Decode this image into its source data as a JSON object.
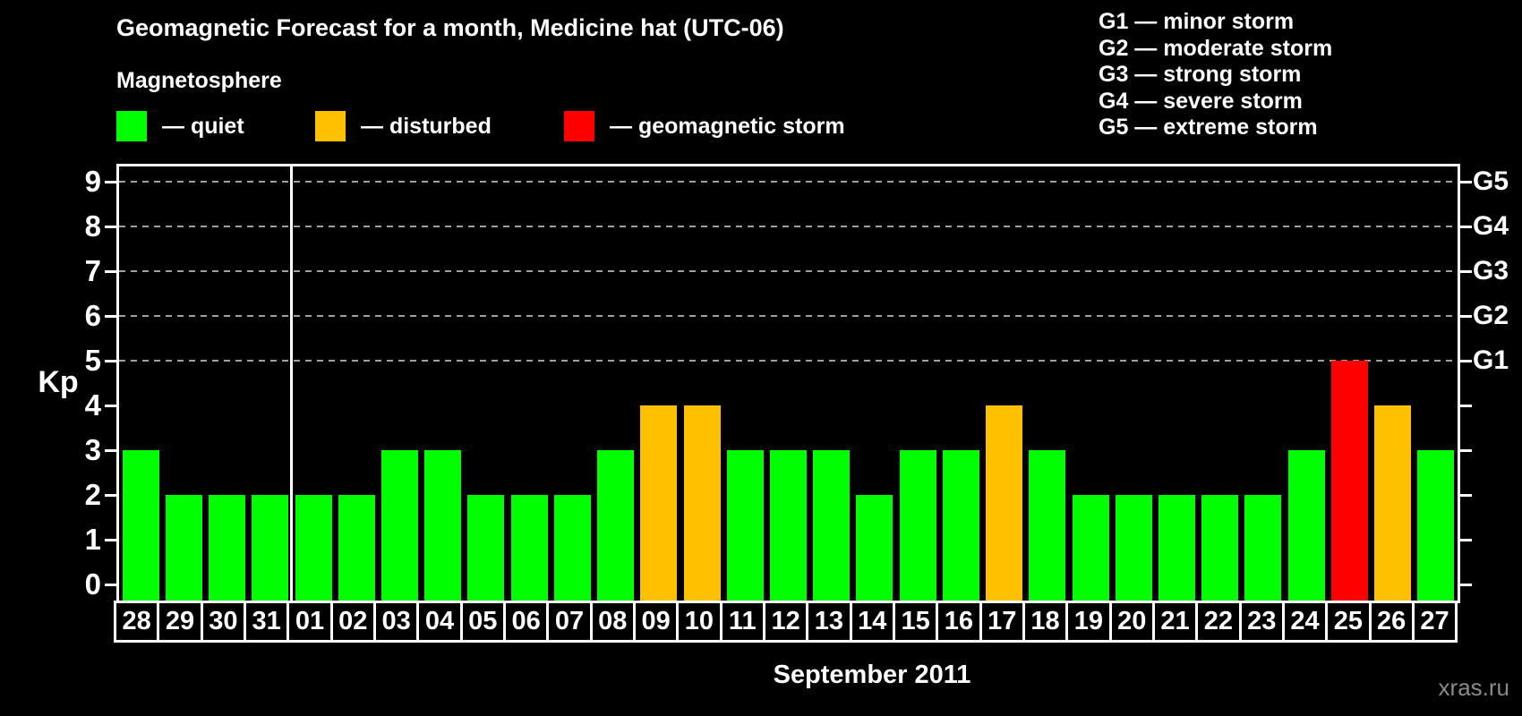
{
  "header": {
    "title": "Geomagnetic Forecast for a month, Medicine hat (UTC-06)",
    "subtitle": "Magnetosphere"
  },
  "legend": {
    "items": [
      {
        "name": "quiet",
        "label": "— quiet",
        "color": "#00ff00"
      },
      {
        "name": "disturbed",
        "label": "— disturbed",
        "color": "#ffc000"
      },
      {
        "name": "storm",
        "label": "— geomagnetic storm",
        "color": "#ff0000"
      }
    ]
  },
  "storm_scale_legend": [
    "G1 — minor storm",
    "G2 — moderate storm",
    "G3 — strong storm",
    "G4 — severe storm",
    "G5 — extreme storm"
  ],
  "axes": {
    "y_label": "Kp",
    "y_ticks": [
      "0",
      "1",
      "2",
      "3",
      "4",
      "5",
      "6",
      "7",
      "8",
      "9"
    ],
    "right_scale": [
      {
        "kp": 5,
        "label": "G1"
      },
      {
        "kp": 6,
        "label": "G2"
      },
      {
        "kp": 7,
        "label": "G3"
      },
      {
        "kp": 8,
        "label": "G4"
      },
      {
        "kp": 9,
        "label": "G5"
      }
    ],
    "x_label": "September 2011"
  },
  "watermark": "xras.ru",
  "colors": {
    "background": "#000000",
    "axis": "#ffffff",
    "gridline": "#a0a0a0",
    "quiet": "#00ff00",
    "disturbed": "#ffc000",
    "storm": "#ff0000",
    "watermark": "#8a8a8a"
  },
  "chart_data": {
    "type": "bar",
    "title": "Geomagnetic Forecast for a month, Medicine hat (UTC-06)",
    "xlabel": "September 2011",
    "ylabel": "Kp",
    "ylim": [
      0,
      9
    ],
    "grid": "horizontal dashed lines at Kp 5-9 (G1-G5 levels)",
    "legend_position": "top-left (magnetosphere) and top-right (G storm scale)",
    "categories": [
      "28",
      "29",
      "30",
      "31",
      "01",
      "02",
      "03",
      "04",
      "05",
      "06",
      "07",
      "08",
      "09",
      "10",
      "11",
      "12",
      "13",
      "14",
      "15",
      "16",
      "17",
      "18",
      "19",
      "20",
      "21",
      "22",
      "23",
      "24",
      "25",
      "26",
      "27"
    ],
    "values": [
      3,
      2,
      2,
      2,
      2,
      2,
      3,
      3,
      2,
      2,
      2,
      3,
      4,
      4,
      3,
      3,
      3,
      2,
      3,
      3,
      4,
      3,
      2,
      2,
      2,
      2,
      2,
      3,
      5,
      4,
      3
    ],
    "statuses": [
      "quiet",
      "quiet",
      "quiet",
      "quiet",
      "quiet",
      "quiet",
      "quiet",
      "quiet",
      "quiet",
      "quiet",
      "quiet",
      "quiet",
      "disturbed",
      "disturbed",
      "quiet",
      "quiet",
      "quiet",
      "quiet",
      "quiet",
      "quiet",
      "disturbed",
      "quiet",
      "quiet",
      "quiet",
      "quiet",
      "quiet",
      "quiet",
      "quiet",
      "storm",
      "disturbed",
      "quiet"
    ],
    "status_colors": {
      "quiet": "#00ff00",
      "disturbed": "#ffc000",
      "storm": "#ff0000"
    },
    "gridline_levels": [
      5,
      6,
      7,
      8,
      9
    ],
    "month_separator_after_index": 3
  }
}
